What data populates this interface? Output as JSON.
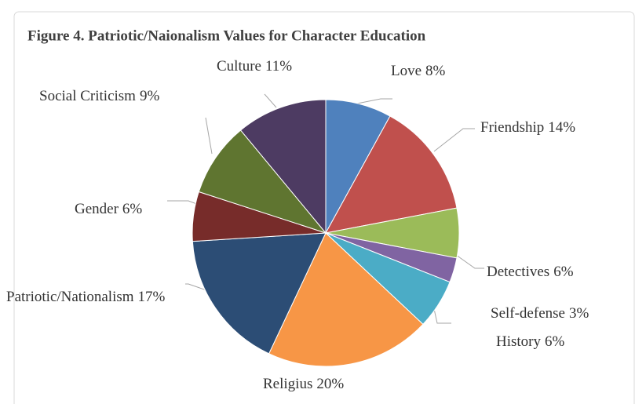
{
  "chart_data": {
    "type": "pie",
    "title": "Figure 4. Patriotic/Naionalism Values for Character Education",
    "categories": [
      "Love",
      "Friendship",
      "Detectives",
      "Self-defense",
      "History",
      "Religius",
      "Patriotic/Nationalism",
      "Gender",
      "Social Criticism",
      "Culture"
    ],
    "values": [
      8,
      14,
      6,
      3,
      6,
      20,
      17,
      6,
      9,
      11
    ],
    "value_labels": [
      "8%",
      "14%",
      "6%",
      "3%",
      "6%",
      "20%",
      "17%",
      "6%",
      "9%",
      "11%"
    ],
    "colors": [
      "#4f81bd",
      "#c0504d",
      "#9bbb59",
      "#8064a2",
      "#4bacc6",
      "#f79646",
      "#2c4d75",
      "#772c2a",
      "#5f7530",
      "#4d3b62"
    ]
  }
}
